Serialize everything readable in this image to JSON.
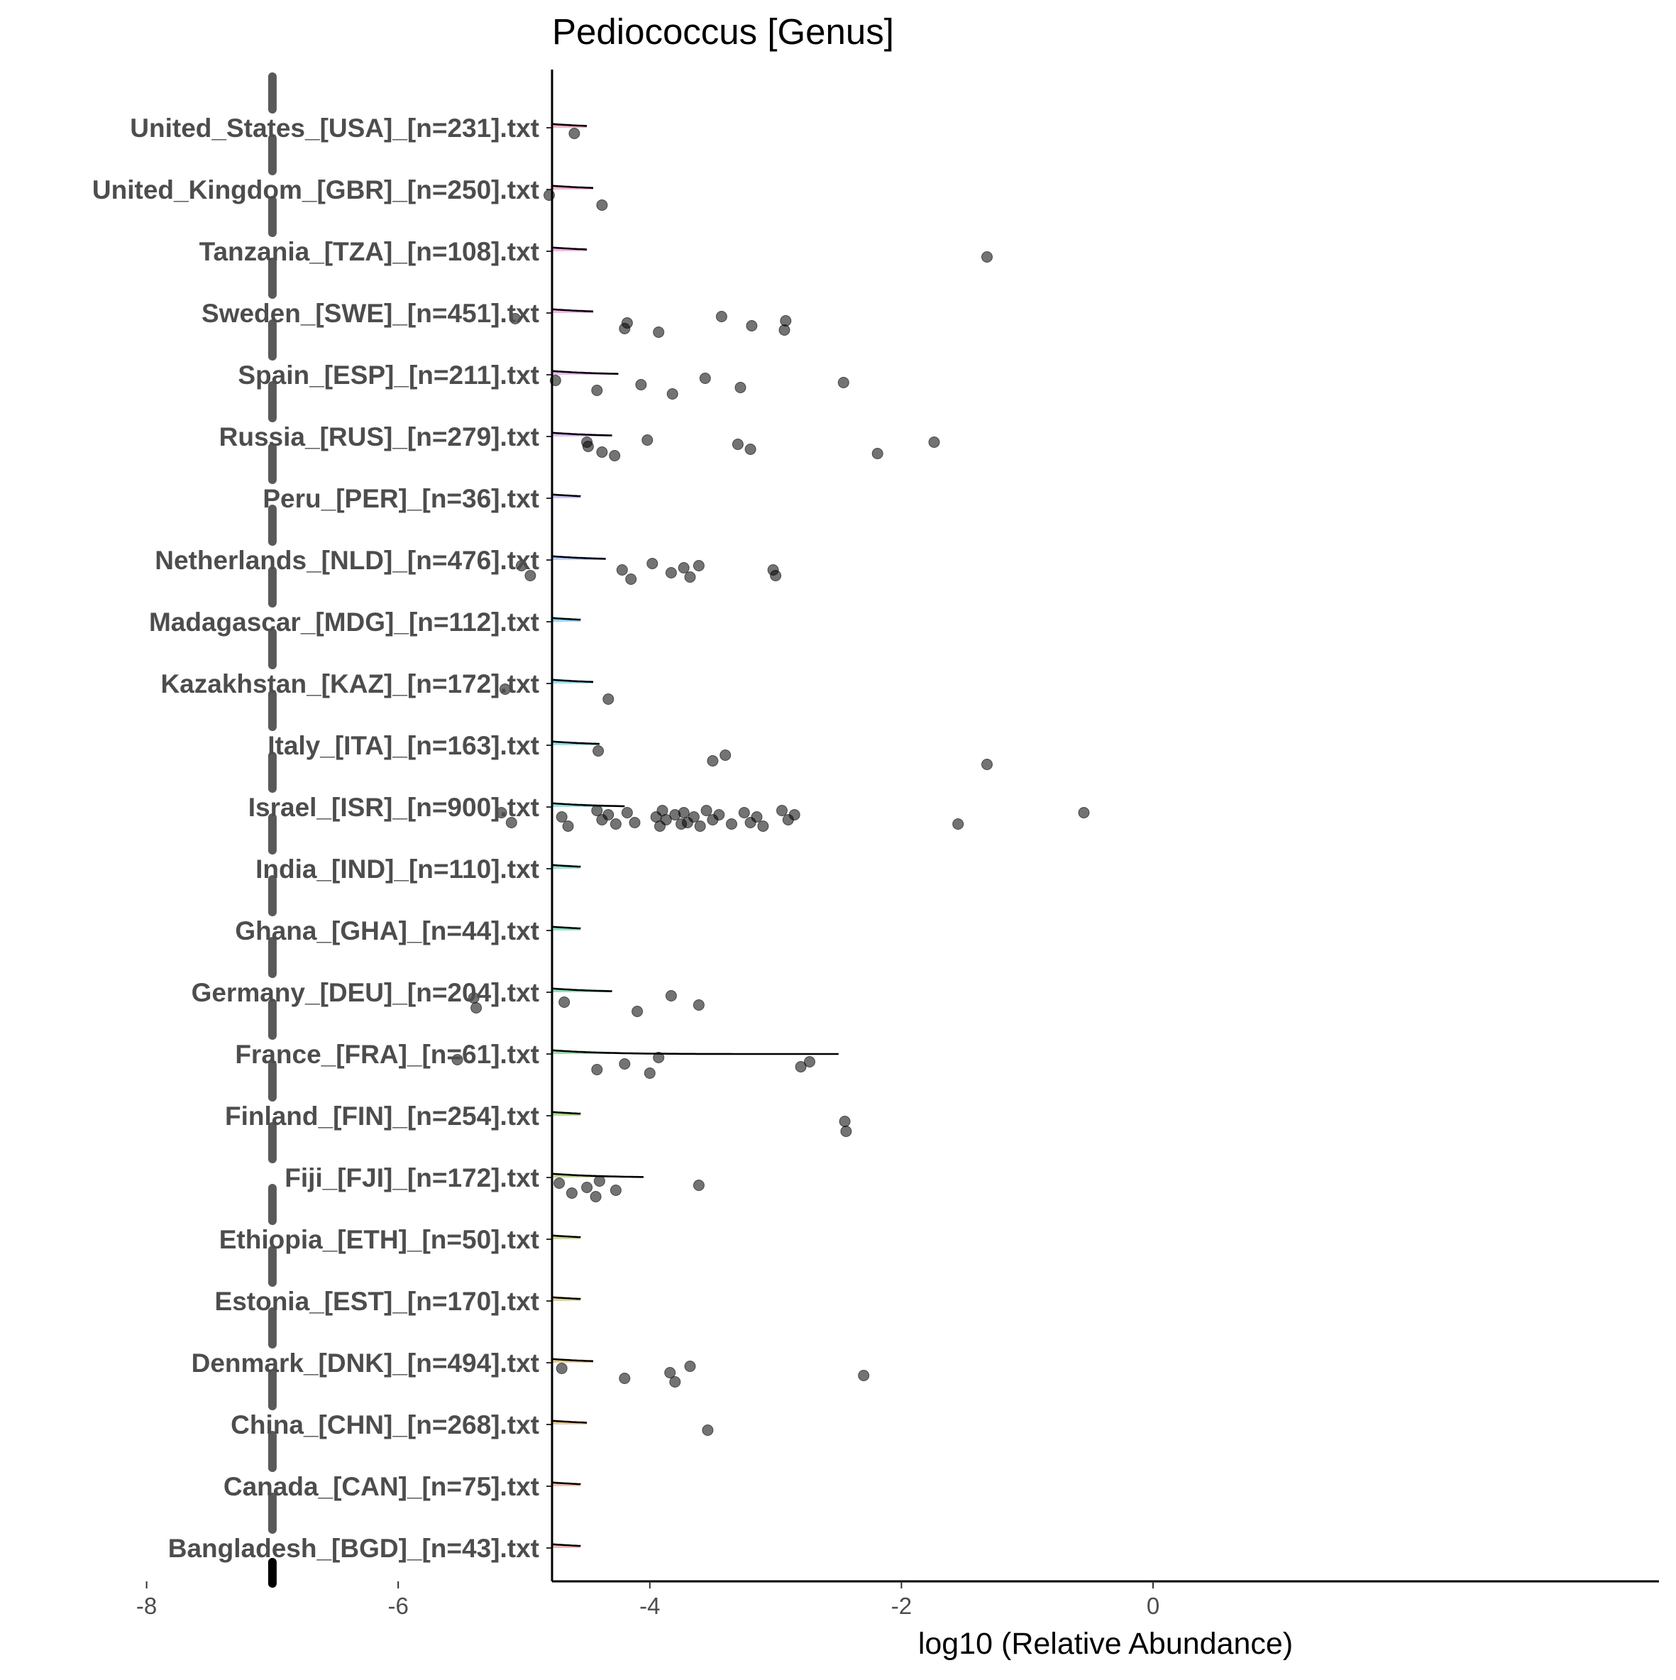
{
  "chart_data": {
    "type": "ridgeline",
    "title": "Pediococcus [Genus]",
    "xlabel": "log10 (Relative Abundance)",
    "ylabel": "",
    "xlim": [
      -8.4,
      0.4
    ],
    "x_ticks": [
      -8,
      -6,
      -4,
      -2,
      0
    ],
    "x_tick_labels": [
      "-8",
      "-6",
      "-4",
      "-2",
      "0"
    ],
    "grid": false,
    "legend": "none",
    "median_x": -7,
    "categories": [
      {
        "label": "United_States_[USA]_[n=231].txt",
        "color": "#F8A3B8",
        "peak": -7.0,
        "end": -4.5,
        "outliers": [
          -4.6
        ]
      },
      {
        "label": "United_Kingdom_[GBR]_[n=250].txt",
        "color": "#FBA3D0",
        "peak": -7.0,
        "end": -4.45,
        "outliers": [
          -4.8,
          -4.38
        ]
      },
      {
        "label": "Tanzania_[TZA]_[n=108].txt",
        "color": "#F9A6E3",
        "peak": -7.0,
        "end": -4.5,
        "outliers": [
          -1.32
        ]
      },
      {
        "label": "Sweden_[SWE]_[n=451].txt",
        "color": "#F4A6EE",
        "peak": -7.0,
        "end": -4.45,
        "outliers": [
          -5.07,
          -4.2,
          -4.18,
          -3.93,
          -3.43,
          -3.19,
          -2.92,
          -2.93
        ]
      },
      {
        "label": "Spain_[ESP]_[n=211].txt",
        "color": "#E9AAF6",
        "peak": -7.0,
        "end": -4.25,
        "outliers": [
          -4.75,
          -4.42,
          -4.07,
          -3.82,
          -3.56,
          -3.28,
          -2.46
        ]
      },
      {
        "label": "Russia_[RUS]_[n=279].txt",
        "color": "#DBB0FB",
        "peak": -7.0,
        "end": -4.3,
        "outliers": [
          -4.5,
          -4.38,
          -4.49,
          -4.28,
          -4.02,
          -3.2,
          -3.3,
          -2.19,
          -1.74
        ]
      },
      {
        "label": "Peru_[PER]_[n=36].txt",
        "color": "#C9BBFD",
        "peak": -7.0,
        "end": -4.55,
        "outliers": []
      },
      {
        "label": "Netherlands_[NLD]_[n=476].txt",
        "color": "#B1C7FD",
        "peak": -7.0,
        "end": -4.35,
        "outliers": [
          -5.02,
          -4.95,
          -4.22,
          -4.15,
          -3.98,
          -3.83,
          -3.73,
          -3.68,
          -3.61,
          -3.0,
          -3.02
        ]
      },
      {
        "label": "Madagascar_[MDG]_[n=112].txt",
        "color": "#82D2FA",
        "peak": -7.0,
        "end": -4.55,
        "outliers": []
      },
      {
        "label": "Kazakhstan_[KAZ]_[n=172].txt",
        "color": "#86DAF5",
        "peak": -7.0,
        "end": -4.45,
        "outliers": [
          -5.15,
          -4.33
        ]
      },
      {
        "label": "Italy_[ITA]_[n=163].txt",
        "color": "#84DDEB",
        "peak": -7.0,
        "end": -4.4,
        "outliers": [
          -4.41,
          -3.5,
          -3.4,
          -1.32
        ]
      },
      {
        "label": "Israel_[ISR]_[n=900].txt",
        "color": "#84E0DF",
        "peak": -7.0,
        "end": -4.2,
        "outliers": [
          -5.18,
          -5.1,
          -4.7,
          -4.65,
          -4.42,
          -4.38,
          -4.33,
          -4.27,
          -4.18,
          -4.12,
          -3.95,
          -3.92,
          -3.9,
          -3.87,
          -3.8,
          -3.75,
          -3.73,
          -3.7,
          -3.65,
          -3.6,
          -3.55,
          -3.5,
          -3.45,
          -3.35,
          -3.25,
          -3.2,
          -3.15,
          -3.1,
          -2.95,
          -2.9,
          -2.85,
          -1.55,
          -0.55
        ]
      },
      {
        "label": "India_[IND]_[n=110].txt",
        "color": "#82DFD1",
        "peak": -7.0,
        "end": -4.55,
        "outliers": []
      },
      {
        "label": "Ghana_[GHA]_[n=44].txt",
        "color": "#81DFC3",
        "peak": -7.0,
        "end": -4.55,
        "outliers": []
      },
      {
        "label": "Germany_[DEU]_[n=204].txt",
        "color": "#83DDB1",
        "peak": -7.0,
        "end": -4.3,
        "outliers": [
          -5.4,
          -5.38,
          -4.68,
          -4.1,
          -3.83,
          -3.61
        ]
      },
      {
        "label": "France_[FRA]_[n=61].txt",
        "color": "#86DA9A",
        "peak": -7.0,
        "end": -2.5,
        "outliers": [
          -5.53,
          -4.42,
          -4.2,
          -4.0,
          -3.93,
          -2.8,
          -2.73
        ]
      },
      {
        "label": "Finland_[FIN]_[n=254].txt",
        "color": "#A2D87D",
        "peak": -7.0,
        "end": -4.55,
        "outliers": [
          -2.45,
          -2.44
        ]
      },
      {
        "label": "Fiji_[FJI]_[n=172].txt",
        "color": "#BCD486",
        "peak": -7.0,
        "end": -4.05,
        "outliers": [
          -4.72,
          -4.62,
          -4.5,
          -4.43,
          -4.4,
          -4.27,
          -3.61
        ]
      },
      {
        "label": "Ethiopia_[ETH]_[n=50].txt",
        "color": "#CED282",
        "peak": -7.0,
        "end": -4.55,
        "outliers": []
      },
      {
        "label": "Estonia_[EST]_[n=170].txt",
        "color": "#DDCD80",
        "peak": -7.0,
        "end": -4.55,
        "outliers": []
      },
      {
        "label": "Denmark_[DNK]_[n=494].txt",
        "color": "#E5C880",
        "peak": -7.0,
        "end": -4.45,
        "outliers": [
          -4.7,
          -4.2,
          -3.84,
          -3.8,
          -3.68,
          -2.3
        ]
      },
      {
        "label": "China_[CHN]_[n=268].txt",
        "color": "#EAC183",
        "peak": -7.0,
        "end": -4.5,
        "outliers": [
          -3.54
        ]
      },
      {
        "label": "Canada_[CAN]_[n=75].txt",
        "color": "#F0B89E",
        "peak": -7.0,
        "end": -4.55,
        "outliers": []
      },
      {
        "label": "Bangladesh_[BGD]_[n=43].txt",
        "color": "#F5ABA7",
        "peak": -7.0,
        "end": -4.55,
        "outliers": []
      }
    ]
  }
}
